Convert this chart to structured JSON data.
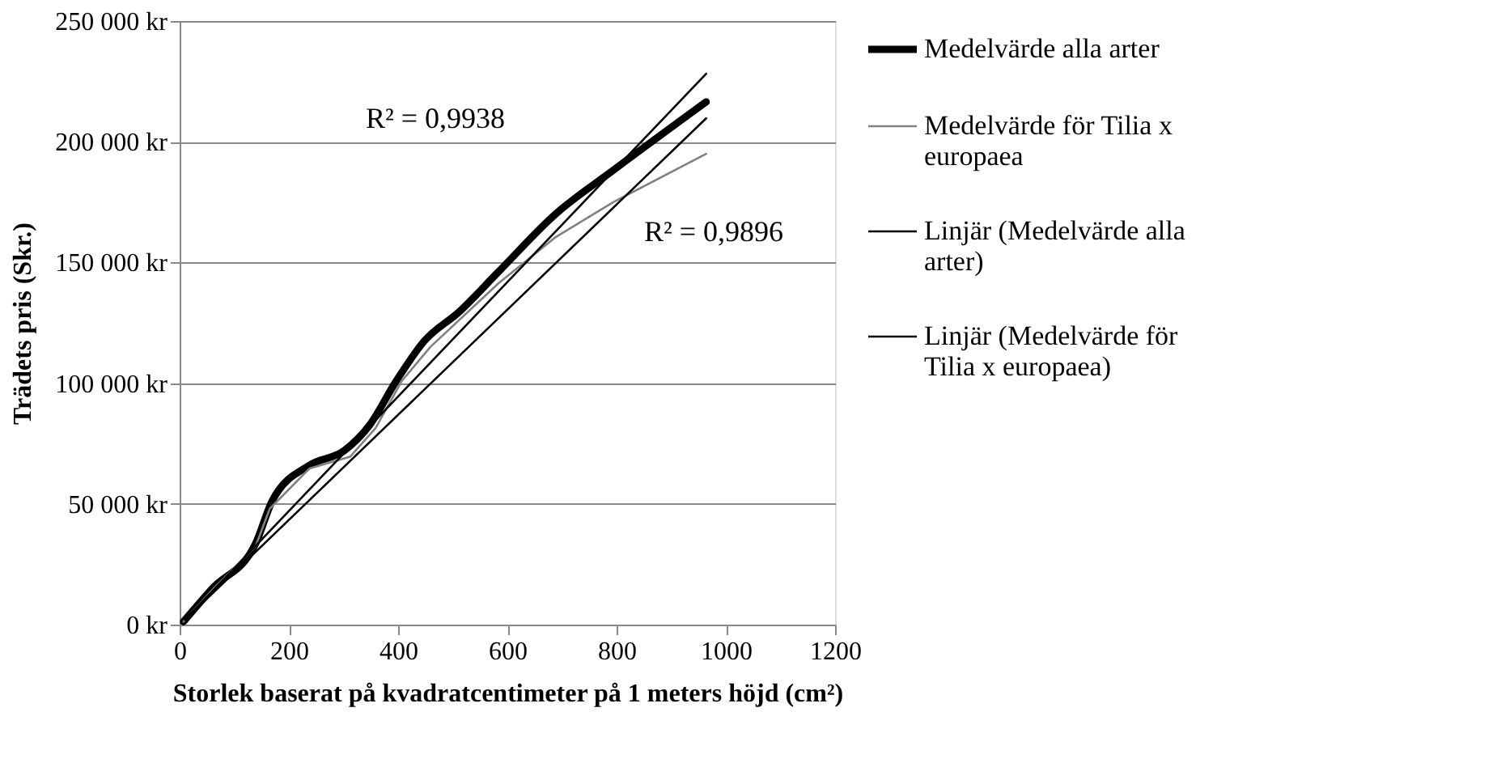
{
  "chart_data": {
    "type": "line",
    "xlabel": "Storlek baserat på kvadratcentimeter på 1 meters höjd (cm²)",
    "ylabel": "Trädets pris (Skr.)",
    "x": [
      7,
      60,
      139,
      170,
      238,
      301,
      348,
      396,
      448,
      511,
      584,
      689,
      794,
      964
    ],
    "xlim": [
      0,
      1200
    ],
    "xticks": [
      0,
      200,
      400,
      600,
      800,
      1000,
      1200
    ],
    "ylim": [
      0,
      250000
    ],
    "yticks": [
      {
        "value": 0,
        "label": "0 kr"
      },
      {
        "value": 50000,
        "label": "50 000 kr"
      },
      {
        "value": 100000,
        "label": "100 000 kr"
      },
      {
        "value": 150000,
        "label": "150 000 kr"
      },
      {
        "value": 200000,
        "label": "200 000 kr"
      },
      {
        "value": 250000,
        "label": "250 000 kr"
      }
    ],
    "grid": "y",
    "legend": "right",
    "marker": "none",
    "line_style": "solid",
    "series": [
      {
        "name": "Medelvärde alla arter",
        "color": "#000000",
        "values": [
          1200,
          15000,
          33500,
          51500,
          66000,
          72000,
          82700,
          100700,
          117500,
          129400,
          146200,
          170200,
          188200,
          216500
        ]
      },
      {
        "name": "Medelvärde för Tilia x europaea",
        "color": "#808080",
        "x": [
          7,
          60,
          139,
          165,
          238,
          312,
          359,
          406,
          459,
          584,
          689,
          794,
          964
        ],
        "values": [
          1200,
          14400,
          32400,
          48000,
          64700,
          69500,
          81500,
          100700,
          115000,
          141400,
          160600,
          175000,
          195000
        ]
      },
      {
        "name": "Linjär (Medelvärde alla arter)",
        "color": "#000000",
        "x": [
          10,
          964
        ],
        "values": [
          2000,
          228200
        ]
      },
      {
        "name": "Linjär (Medelvärde för Tilia x europaea)",
        "color": "#000000",
        "x": [
          10,
          964
        ],
        "values": [
          2000,
          209700
        ]
      }
    ],
    "annotations": [
      "R² = 0,9938",
      "R² = 0,9896"
    ]
  }
}
